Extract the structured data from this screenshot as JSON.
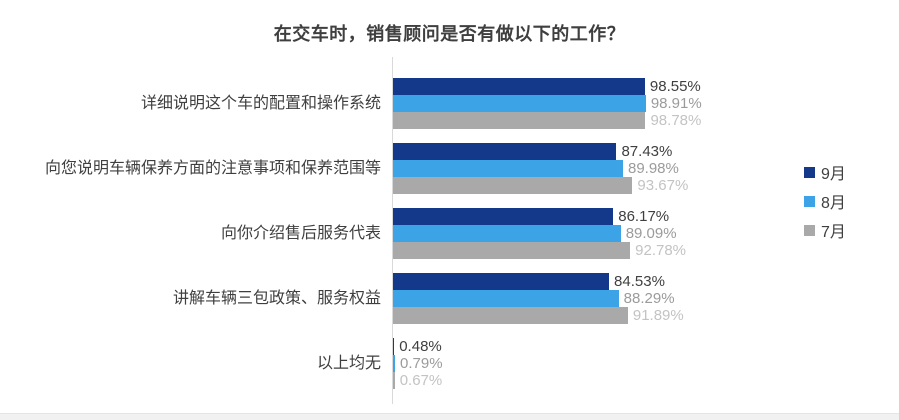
{
  "chart_data": {
    "type": "bar",
    "orientation": "horizontal",
    "title": "在交车时，销售顾问是否有做以下的工作？",
    "categories": [
      "详细说明这个车的配置和操作系统",
      "向您说明车辆保养方面的注意事项和保养范围等",
      "向你介绍售后服务代表",
      "讲解车辆三包政策、服务权益",
      "以上均无"
    ],
    "series": [
      {
        "name": "9月",
        "color": "#14388a",
        "label_color": "#3f3f3f",
        "values": [
          98.55,
          87.43,
          86.17,
          84.53,
          0.48
        ]
      },
      {
        "name": "8月",
        "color": "#3ca4e6",
        "label_color": "#9b9b9b",
        "values": [
          98.91,
          89.98,
          89.09,
          88.29,
          0.79
        ]
      },
      {
        "name": "7月",
        "color": "#a9a9a9",
        "label_color": "#c3c3c3",
        "values": [
          98.78,
          93.67,
          92.78,
          91.89,
          0.67
        ]
      }
    ],
    "value_suffix": "%",
    "xlim": [
      0,
      100
    ],
    "grid": false,
    "legend_position": "right"
  },
  "colors": {
    "background": "#ffffff",
    "title": "#3f3f3f",
    "category_label": "#3f3f3f",
    "axis_line": "#d9d9d9",
    "bottom_strip": "#f1f1f1"
  }
}
